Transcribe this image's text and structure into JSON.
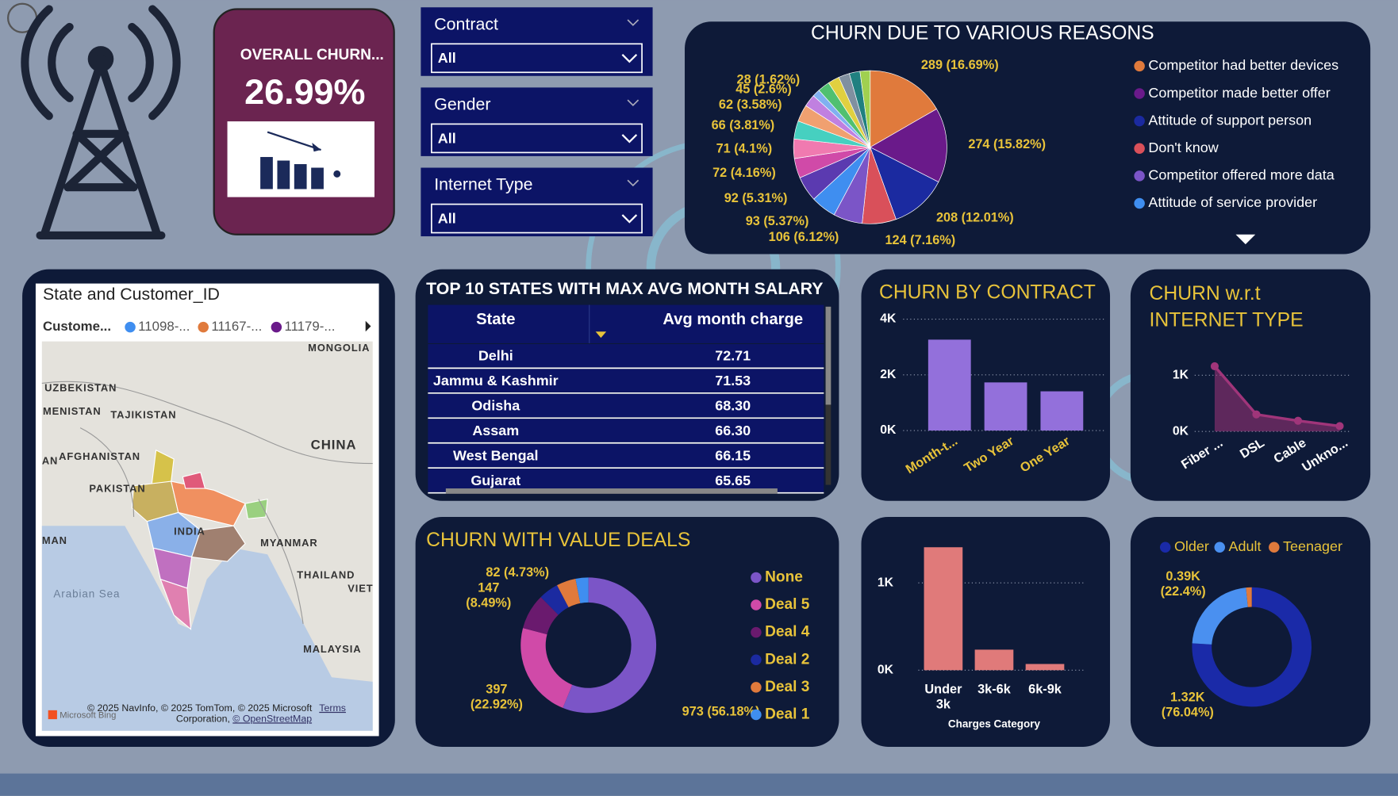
{
  "kpi": {
    "title": "OVERALL CHURN...",
    "value": "26.99%"
  },
  "filters": [
    {
      "label": "Contract",
      "value": "All"
    },
    {
      "label": "Gender",
      "value": "All"
    },
    {
      "label": "Internet Type",
      "value": "All"
    }
  ],
  "map": {
    "title": "State and Customer_ID",
    "legend_title": "Custome...",
    "legend_items": [
      "11098-...",
      "11167-...",
      "11179-..."
    ],
    "legend_colors": [
      "#3f8ef0",
      "#e07a3c",
      "#6a1a8a"
    ],
    "labels": [
      "MONGOLIA",
      "UZBEKISTAN",
      "MENISTAN",
      "TAJIKISTAN",
      "CHINA",
      "AN",
      "AFGHANISTAN",
      "PAKISTAN",
      "INDIA",
      "MAN",
      "MYANMAR",
      "THAILAND",
      "VIET",
      "Arabian Sea",
      "MALAYSIA"
    ],
    "attribution": "© 2025 NavInfo, © 2025 TomTom, © 2025 Microsoft",
    "attribution2": "Corporation,",
    "osm": "© OpenStreetMap",
    "terms": "Terms",
    "bing": "Microsoft Bing"
  },
  "table": {
    "title": "TOP 10 STATES WITH MAX AVG MONTH SALARY",
    "columns": [
      "State",
      "Avg month charge"
    ],
    "rows": [
      [
        "Delhi",
        "72.71"
      ],
      [
        "Jammu & Kashmir",
        "71.53"
      ],
      [
        "Odisha",
        "68.30"
      ],
      [
        "Assam",
        "66.30"
      ],
      [
        "West Bengal",
        "66.15"
      ],
      [
        "Gujarat",
        "65.65"
      ]
    ]
  },
  "chart_data": [
    {
      "type": "pie",
      "title": "CHURN DUE TO VARIOUS REASONS",
      "categories": [
        "Competitor had better devices",
        "Competitor made better offer",
        "Attitude of support person",
        "Don't know",
        "Competitor offered more data",
        "Attitude of service provider",
        null,
        null,
        null,
        null,
        null,
        null,
        null,
        null,
        null,
        null,
        null,
        null
      ],
      "values": [
        289,
        274,
        208,
        124,
        106,
        93,
        92,
        72,
        71,
        66,
        62,
        45,
        28,
        44,
        42,
        40,
        39,
        37
      ],
      "value_labels": [
        "289 (16.69%)",
        "274 (15.82%)",
        "208 (12.01%)",
        "124 (7.16%)",
        "106 (6.12%)",
        "93 (5.37%)",
        "92 (5.31%)",
        "72 (4.16%)",
        "71 (4.1%)",
        "66 (3.81%)",
        "62 (3.58%)",
        "45 (2.6%)",
        "28 (1.62%)",
        null,
        null,
        null,
        null,
        null
      ],
      "colors": [
        "#e07a3c",
        "#6a1a8a",
        "#1b2aa0",
        "#d9505a",
        "#7b55c7",
        "#3f8ef0",
        "#5b3ab0",
        "#d04aa8",
        "#f07ab0",
        "#46d0c0",
        "#f0a070",
        "#c080e0",
        "#80b0f0",
        "#50c070",
        "#e0d040",
        "#8090a0",
        "#208080",
        "#a0d050"
      ]
    },
    {
      "type": "bar",
      "title": "CHURN BY CONTRACT",
      "categories": [
        "Month-t...",
        "Two Year",
        "One Year"
      ],
      "values": [
        3264,
        1728,
        1408
      ],
      "color": "#9370db",
      "ylim": [
        0,
        4000
      ],
      "yticks": [
        {
          "value": 0,
          "label": "0K"
        },
        {
          "value": 2000,
          "label": "2K"
        },
        {
          "value": 4000,
          "label": "4K"
        }
      ],
      "grid": true
    },
    {
      "type": "line",
      "title": "CHURN w.r.t INTERNET TYPE",
      "categories": [
        "Fiber ...",
        "DSL",
        "Cable",
        "Unkno..."
      ],
      "values": [
        1159,
        302,
        190,
        95
      ],
      "color": "#a0357a",
      "ylim": [
        0,
        1300
      ],
      "yticks": [
        {
          "value": 0,
          "label": "0K"
        },
        {
          "value": 1000,
          "label": "1K"
        }
      ],
      "grid": true
    },
    {
      "type": "donut",
      "title": "CHURN WITH VALUE DEALS",
      "categories": [
        "None",
        "Deal 5",
        "Deal 4",
        "Deal 2",
        "Deal 3",
        "Deal 1"
      ],
      "values": [
        973,
        397,
        147,
        82,
        80,
        53
      ],
      "value_labels": [
        "973 (56.18%)",
        "397 (22.92%)",
        "147 (8.49%)",
        "82 (4.73%)",
        null,
        null
      ],
      "colors": [
        "#7b55c7",
        "#d04aa8",
        "#6a1a6e",
        "#1b2aa0",
        "#e07a3c",
        "#3f8ef0"
      ],
      "legend": "right"
    },
    {
      "type": "bar",
      "x_label": "Charges Category",
      "categories": [
        "Under 3k",
        "3k-6k",
        "6k-9k"
      ],
      "values": [
        1408,
        235,
        71
      ],
      "color": "#e07a7a",
      "ylim": [
        0,
        1500
      ],
      "yticks": [
        {
          "value": 0,
          "label": "0K"
        },
        {
          "value": 1000,
          "label": "1K"
        }
      ],
      "grid": true
    },
    {
      "type": "donut",
      "categories": [
        "Older",
        "Adult",
        "Teenager"
      ],
      "values": [
        1320,
        390,
        27
      ],
      "value_labels": [
        "1.32K (76.04%)",
        "0.39K (22.4%)",
        null
      ],
      "colors": [
        "#1a2aa8",
        "#4a90f0",
        "#e07a3c"
      ],
      "legend": "top"
    }
  ]
}
